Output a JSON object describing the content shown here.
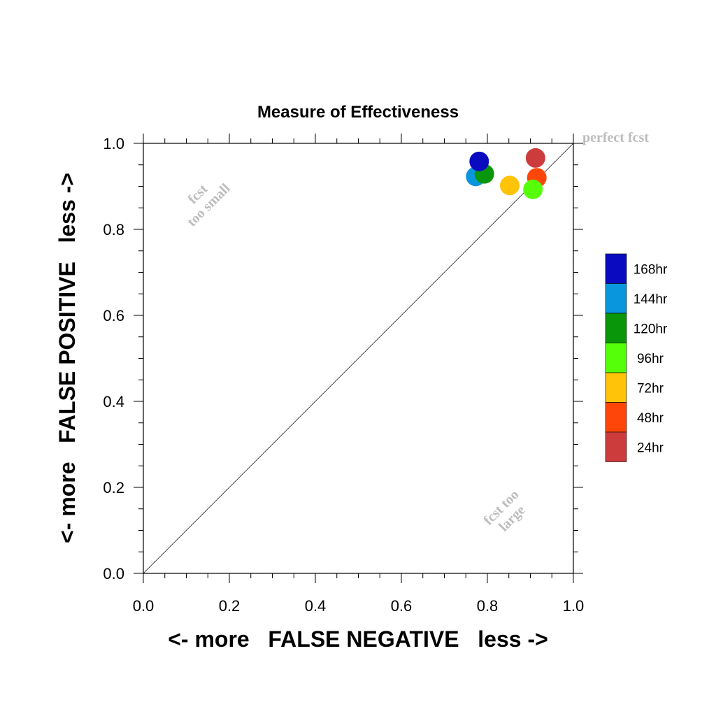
{
  "chart_data": {
    "type": "scatter",
    "title": "Measure of Effectiveness",
    "xlabel": "<- more   FALSE NEGATIVE   less ->",
    "ylabel": "<- more   FALSE POSITIVE   less ->",
    "xlim": [
      0.0,
      1.0
    ],
    "ylim": [
      0.0,
      1.0
    ],
    "x_ticks": [
      "0.0",
      "0.2",
      "0.4",
      "0.6",
      "0.8",
      "1.0"
    ],
    "y_ticks": [
      "0.0",
      "0.2",
      "0.4",
      "0.6",
      "0.8",
      "1.0"
    ],
    "grid": false,
    "diagonal_line": true,
    "legend_position": "right",
    "annotations": {
      "perfect": "perfect fcst",
      "too_small_line1": "fcst",
      "too_small_line2": "too small",
      "too_large_line1": "fcst too",
      "too_large_line2": "large"
    },
    "series": [
      {
        "name": "168hr",
        "color": "#0a0ac0",
        "x": 0.781,
        "y": 0.958
      },
      {
        "name": "144hr",
        "color": "#0a96dc",
        "x": 0.773,
        "y": 0.923
      },
      {
        "name": "120hr",
        "color": "#0a960a",
        "x": 0.793,
        "y": 0.929
      },
      {
        "name": "96hr",
        "color": "#55ff0a",
        "x": 0.906,
        "y": 0.893
      },
      {
        "name": "72hr",
        "color": "#ffc30a",
        "x": 0.852,
        "y": 0.902
      },
      {
        "name": "48hr",
        "color": "#ff460a",
        "x": 0.915,
        "y": 0.92
      },
      {
        "name": "24hr",
        "color": "#cd3c3c",
        "x": 0.912,
        "y": 0.966
      }
    ]
  }
}
